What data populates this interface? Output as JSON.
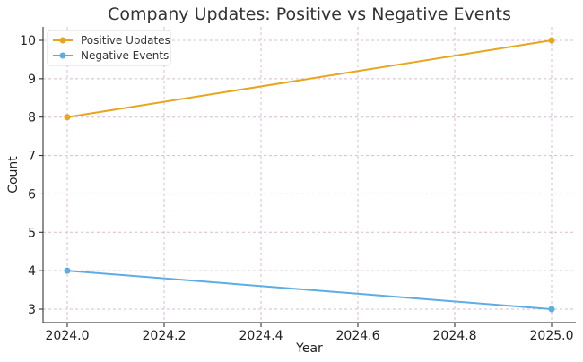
{
  "chart_data": {
    "type": "line",
    "title": "Company Updates: Positive vs Negative Events",
    "xlabel": "Year",
    "ylabel": "Count",
    "xlim": [
      2023.95,
      2025.05
    ],
    "ylim": [
      2.65,
      10.35
    ],
    "xticks": [
      "2024.0",
      "2024.2",
      "2024.4",
      "2024.6",
      "2024.8",
      "2025.0"
    ],
    "yticks": [
      "3",
      "4",
      "5",
      "6",
      "7",
      "8",
      "9",
      "10"
    ],
    "grid": true,
    "legend_position": "top-left",
    "series": [
      {
        "name": "Positive Updates",
        "color": "#E8A51E",
        "x": [
          2024.0,
          2025.0
        ],
        "y": [
          8,
          10
        ]
      },
      {
        "name": "Negative Events",
        "color": "#5DADE2",
        "x": [
          2024.0,
          2025.0
        ],
        "y": [
          4,
          3
        ]
      }
    ]
  }
}
